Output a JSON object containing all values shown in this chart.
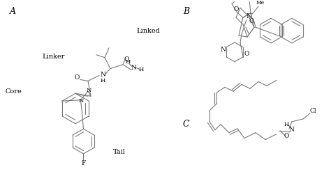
{
  "bg_color": "#ffffff",
  "line_color": "#7a7a7a",
  "text_color": "#000000",
  "label_A": "A",
  "label_B": "B",
  "label_C": "C",
  "label_linked": "Linked",
  "label_linker": "Linker",
  "label_core": "Core",
  "label_tail": "Tail",
  "fig_width": 4.74,
  "fig_height": 2.76,
  "dpi": 100
}
